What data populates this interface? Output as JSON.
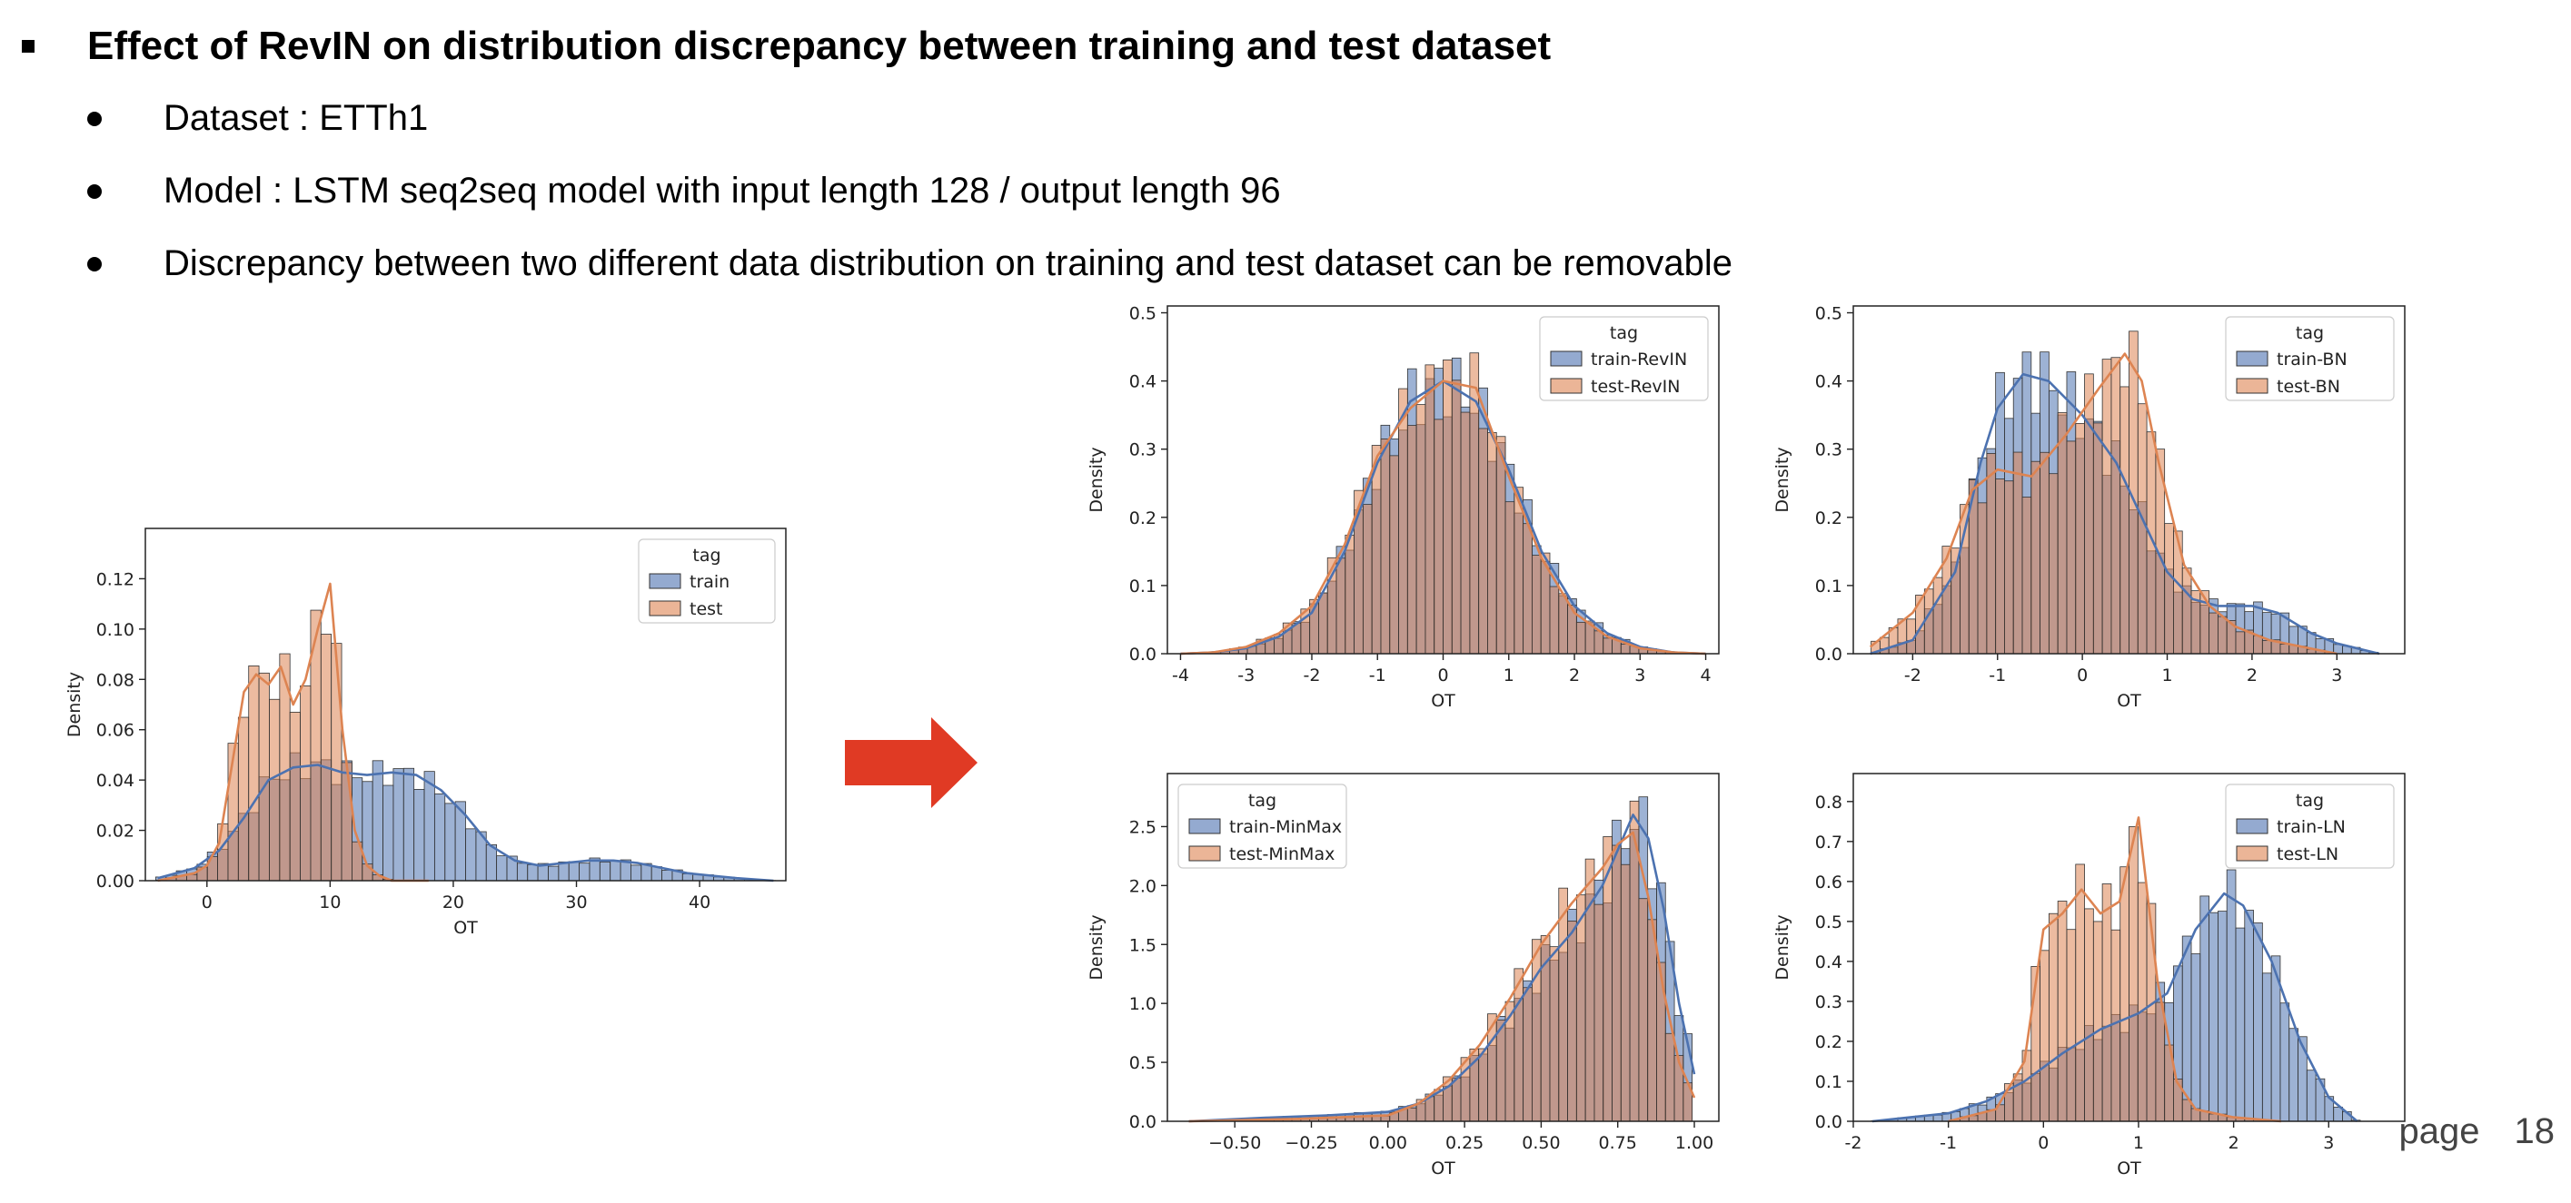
{
  "slide": {
    "title": "Effect of RevIN on distribution discrepancy between training and test dataset",
    "bullets": [
      "Dataset : ETTh1",
      "Model : LSTM seq2seq model with input length 128 / output length 96",
      "Discrepancy between two different data distribution on training and test dataset can be removable"
    ],
    "page_label": "page",
    "page_number": "18"
  },
  "colors": {
    "train": "#4c72b0",
    "test": "#dd8452",
    "arrow": "#e03a24"
  },
  "chart_data": [
    {
      "type": "histogram",
      "xlabel": "OT",
      "ylabel": "Density",
      "xlim": [
        -5,
        47
      ],
      "ylim": [
        0,
        0.14
      ],
      "xticks": [
        0,
        10,
        20,
        30,
        40
      ],
      "yticks": [
        "0.00",
        "0.02",
        "0.04",
        "0.06",
        "0.08",
        "0.10",
        "0.12"
      ],
      "legend_title": "tag",
      "legend_position": "top-right",
      "series": [
        {
          "name": "train",
          "x": [
            -4,
            -1,
            1,
            3,
            5,
            7,
            9,
            11,
            13,
            15,
            17,
            19,
            21,
            23,
            25,
            27,
            29,
            31,
            33,
            35,
            37,
            39,
            41,
            43,
            46
          ],
          "y": [
            0.001,
            0.005,
            0.012,
            0.025,
            0.04,
            0.045,
            0.046,
            0.043,
            0.042,
            0.043,
            0.042,
            0.036,
            0.026,
            0.014,
            0.008,
            0.006,
            0.007,
            0.008,
            0.008,
            0.007,
            0.005,
            0.003,
            0.002,
            0.001,
            0.0
          ]
        },
        {
          "name": "test",
          "x": [
            -4,
            -1,
            0,
            1,
            2,
            3,
            4,
            5,
            6,
            7,
            8,
            9,
            10,
            11,
            12,
            13,
            14,
            15,
            16,
            18
          ],
          "y": [
            0.0,
            0.003,
            0.006,
            0.015,
            0.045,
            0.075,
            0.082,
            0.078,
            0.085,
            0.07,
            0.08,
            0.1,
            0.118,
            0.06,
            0.02,
            0.006,
            0.002,
            0.0,
            0.0,
            0.0
          ]
        }
      ]
    },
    {
      "type": "histogram",
      "xlabel": "OT",
      "ylabel": "Density",
      "xlim": [
        -4.2,
        4.2
      ],
      "ylim": [
        0,
        0.51
      ],
      "xticks": [
        -4,
        -3,
        -2,
        -1,
        0,
        1,
        2,
        3,
        4
      ],
      "yticks": [
        "0.0",
        "0.1",
        "0.2",
        "0.3",
        "0.4",
        "0.5"
      ],
      "legend_title": "tag",
      "legend_position": "top-right",
      "series": [
        {
          "name": "train-RevIN",
          "x": [
            -4,
            -3.5,
            -3,
            -2.5,
            -2,
            -1.5,
            -1,
            -0.5,
            0,
            0.5,
            1,
            1.5,
            2,
            2.5,
            3,
            3.5,
            4
          ],
          "y": [
            0.0,
            0.002,
            0.008,
            0.025,
            0.06,
            0.15,
            0.28,
            0.37,
            0.4,
            0.37,
            0.27,
            0.15,
            0.07,
            0.03,
            0.01,
            0.002,
            0.0
          ]
        },
        {
          "name": "test-RevIN",
          "x": [
            -4,
            -3.5,
            -3,
            -2.5,
            -2,
            -1.5,
            -1,
            -0.5,
            0,
            0.5,
            1,
            1.5,
            2,
            2.5,
            3,
            3.5,
            4
          ],
          "y": [
            0.0,
            0.002,
            0.01,
            0.03,
            0.07,
            0.16,
            0.29,
            0.36,
            0.4,
            0.39,
            0.26,
            0.14,
            0.06,
            0.025,
            0.008,
            0.002,
            0.0
          ]
        }
      ]
    },
    {
      "type": "histogram",
      "xlabel": "OT",
      "ylabel": "Density",
      "xlim": [
        -2.7,
        3.8
      ],
      "ylim": [
        0,
        0.51
      ],
      "xticks": [
        -2,
        -1,
        0,
        1,
        2,
        3
      ],
      "yticks": [
        "0.0",
        "0.1",
        "0.2",
        "0.3",
        "0.4",
        "0.5"
      ],
      "legend_title": "tag",
      "legend_position": "top-right",
      "series": [
        {
          "name": "train-BN",
          "x": [
            -2.5,
            -2,
            -1.5,
            -1.2,
            -1,
            -0.7,
            -0.4,
            0,
            0.4,
            0.7,
            1,
            1.3,
            1.6,
            2,
            2.3,
            2.7,
            3,
            3.5
          ],
          "y": [
            0.0,
            0.02,
            0.12,
            0.28,
            0.36,
            0.41,
            0.4,
            0.35,
            0.28,
            0.2,
            0.12,
            0.08,
            0.07,
            0.07,
            0.06,
            0.03,
            0.015,
            0.0
          ]
        },
        {
          "name": "test-BN",
          "x": [
            -2.5,
            -2,
            -1.6,
            -1.3,
            -1,
            -0.6,
            -0.2,
            0.2,
            0.5,
            0.7,
            0.9,
            1.2,
            1.5,
            1.8,
            2.2,
            2.6,
            3
          ],
          "y": [
            0.01,
            0.06,
            0.14,
            0.24,
            0.27,
            0.26,
            0.32,
            0.39,
            0.44,
            0.4,
            0.28,
            0.13,
            0.07,
            0.04,
            0.02,
            0.01,
            0.0
          ]
        }
      ]
    },
    {
      "type": "histogram",
      "xlabel": "OT",
      "ylabel": "Density",
      "xlim": [
        -0.72,
        1.08
      ],
      "ylim": [
        0,
        2.95
      ],
      "xticks": [
        "−0.50",
        "−0.25",
        "0.00",
        "0.25",
        "0.50",
        "0.75",
        "1.00"
      ],
      "xtick_values": [
        -0.5,
        -0.25,
        0,
        0.25,
        0.5,
        0.75,
        1.0
      ],
      "yticks": [
        "0.0",
        "0.5",
        "1.0",
        "1.5",
        "2.0",
        "2.5"
      ],
      "legend_title": "tag",
      "legend_position": "top-left",
      "series": [
        {
          "name": "train-MinMax",
          "x": [
            -0.65,
            -0.4,
            -0.2,
            0,
            0.1,
            0.2,
            0.3,
            0.4,
            0.5,
            0.6,
            0.7,
            0.75,
            0.8,
            0.85,
            0.9,
            0.95,
            1.0
          ],
          "y": [
            0.0,
            0.03,
            0.05,
            0.08,
            0.15,
            0.3,
            0.55,
            0.9,
            1.3,
            1.6,
            2.0,
            2.3,
            2.6,
            2.4,
            1.8,
            1.0,
            0.4
          ]
        },
        {
          "name": "test-MinMax",
          "x": [
            -0.65,
            -0.3,
            0,
            0.1,
            0.2,
            0.3,
            0.4,
            0.5,
            0.6,
            0.7,
            0.75,
            0.8,
            0.85,
            0.9,
            0.95,
            1.0
          ],
          "y": [
            0.0,
            0.02,
            0.05,
            0.15,
            0.35,
            0.65,
            1.05,
            1.5,
            1.85,
            2.15,
            2.35,
            2.45,
            1.9,
            1.1,
            0.5,
            0.2
          ]
        }
      ]
    },
    {
      "type": "histogram",
      "xlabel": "OT",
      "ylabel": "Density",
      "xlim": [
        -2.0,
        3.8
      ],
      "ylim": [
        0,
        0.87
      ],
      "xticks": [
        -2,
        -1,
        0,
        1,
        2,
        3
      ],
      "yticks": [
        "0.0",
        "0.1",
        "0.2",
        "0.3",
        "0.4",
        "0.5",
        "0.6",
        "0.7",
        "0.8"
      ],
      "legend_title": "tag",
      "legend_position": "top-right",
      "series": [
        {
          "name": "train-LN",
          "x": [
            -1.8,
            -1.4,
            -1,
            -0.6,
            -0.2,
            0.2,
            0.6,
            1,
            1.3,
            1.6,
            1.9,
            2.1,
            2.4,
            2.7,
            3,
            3.3
          ],
          "y": [
            0.0,
            0.01,
            0.02,
            0.05,
            0.1,
            0.17,
            0.23,
            0.27,
            0.32,
            0.48,
            0.57,
            0.54,
            0.4,
            0.2,
            0.06,
            0.0
          ]
        },
        {
          "name": "test-LN",
          "x": [
            -1,
            -0.5,
            -0.2,
            0,
            0.2,
            0.4,
            0.6,
            0.8,
            1,
            1.2,
            1.4,
            1.6,
            2,
            2.5
          ],
          "y": [
            0.0,
            0.03,
            0.15,
            0.48,
            0.52,
            0.58,
            0.52,
            0.55,
            0.76,
            0.35,
            0.1,
            0.03,
            0.01,
            0.0
          ]
        }
      ]
    }
  ]
}
